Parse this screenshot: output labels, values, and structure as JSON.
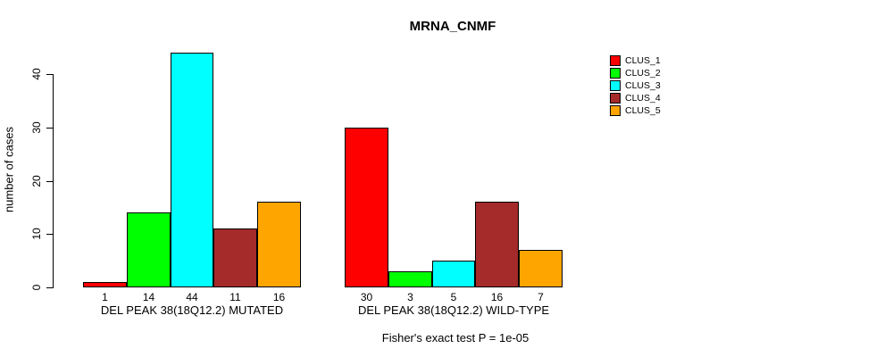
{
  "title": "MRNA_CNMF",
  "ylabel": "number of cases",
  "footer": "Fisher's exact test P = 1e-05",
  "chart_data": {
    "type": "bar",
    "title": "MRNA_CNMF",
    "xlabel": "",
    "ylabel": "number of cases",
    "ylim": [
      0,
      44
    ],
    "yticks": [
      0,
      10,
      20,
      30,
      40
    ],
    "grid": false,
    "legend_position": "right",
    "series_labels": [
      "CLUS_1",
      "CLUS_2",
      "CLUS_3",
      "CLUS_4",
      "CLUS_5"
    ],
    "colors": [
      "#FF0000",
      "#00FF00",
      "#00FFFF",
      "#A52A2A",
      "#FFA500"
    ],
    "groups": [
      {
        "label": "DEL PEAK 38(18Q12.2) MUTATED",
        "values": [
          1,
          14,
          44,
          11,
          16
        ]
      },
      {
        "label": "DEL PEAK 38(18Q12.2) WILD-TYPE",
        "values": [
          30,
          3,
          5,
          16,
          7
        ]
      }
    ],
    "annotation": "Fisher's exact test P = 1e-05"
  }
}
